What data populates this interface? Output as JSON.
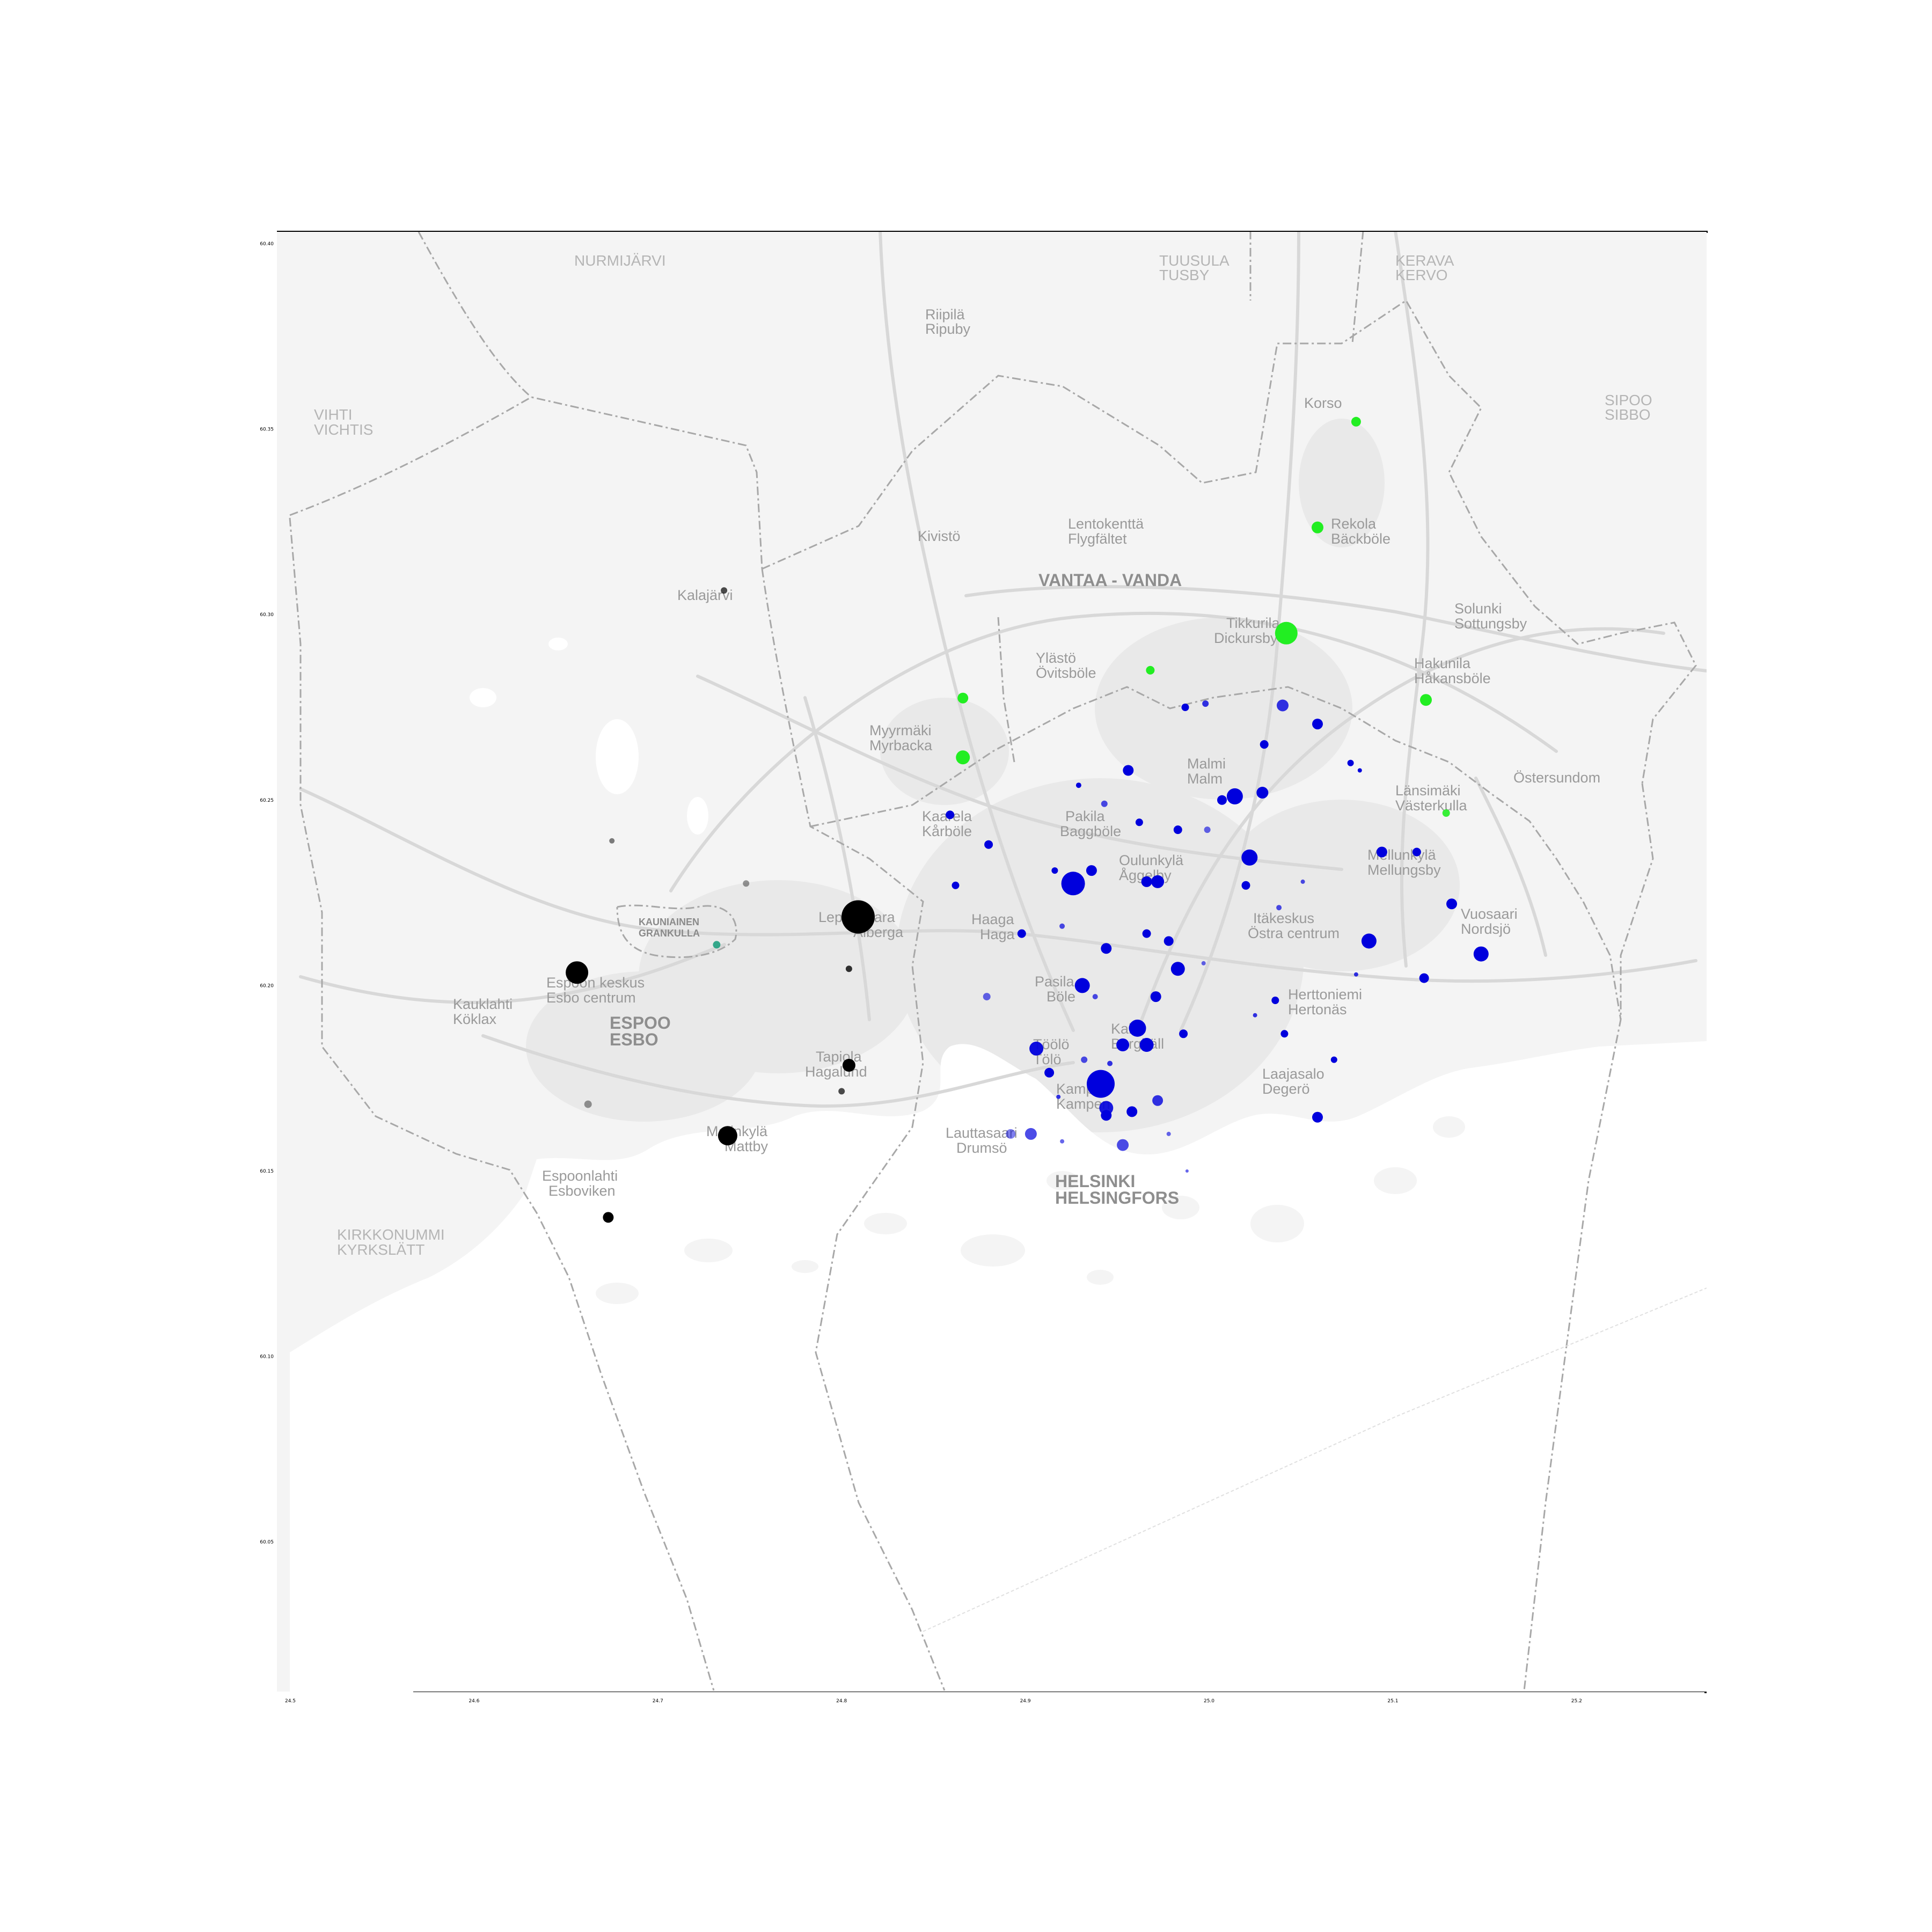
{
  "axes": {
    "x_ticks": [
      "24.5",
      "24.6",
      "24.7",
      "24.8",
      "24.9",
      "25.0",
      "25.1",
      "25.2"
    ],
    "y_ticks": [
      "60.40",
      "60.35",
      "60.30",
      "60.25",
      "60.20",
      "60.15",
      "60.10",
      "60.05"
    ]
  },
  "place_labels": {
    "nurmijarvi": "NURMIJÄRVI",
    "tuusula": "TUUSULA",
    "tusby": "TUSBY",
    "kerava": "KERAVA",
    "kervo": "KERVO",
    "riipila": "Riipilä",
    "ripuby": "Ripuby",
    "korso": "Korso",
    "sipoo": "SIPOO",
    "sibbo": "SIBBO",
    "vihti": "VIHTI",
    "vichtis": "VICHTIS",
    "lentokentta": "Lentokenttä",
    "flygfaltet": "Flygfältet",
    "kivisto": "Kivistö",
    "rekola": "Rekola",
    "backas": "Bäckböle",
    "vantaa": "VANTAA - VANDA",
    "kalajarvi": "Kalajärvi",
    "tikkurila": "Tikkurila",
    "dickursby": "Dickursby",
    "solunki": "Solunki",
    "sottungsby": "Sottungsby",
    "ylasto": "Ylästö",
    "ovitsbole": "Övitsböle",
    "hakunila": "Hakunila",
    "hakansbole": "Håkansböle",
    "myyrmaki": "Myyrmäki",
    "myrbacka": "Myrbacka",
    "malmi": "Malmi",
    "malm": "Malm",
    "ostersundom": "Östersundom",
    "lansimaki": "Länsimäki",
    "vasterkulla": "Västerkulla",
    "kaarela": "Kaarela",
    "karbole": "Kårböle",
    "pakila": "Pakila",
    "baggbole": "Baggböle",
    "oulunkyla": "Oulunkylä",
    "aggelby": "Åggelby",
    "mellunkyla": "Mellunkylä",
    "mellungsby": "Mellungsby",
    "kauniainen": "KAUNIAINEN",
    "grankulla": "GRANKULLA",
    "leppavaara": "Leppävaara",
    "alberga": "Alberga",
    "haaga": "Haaga",
    "haga": "Haga",
    "itakeskus": "Itäkeskus",
    "ostra_centrum": "Östra centrum",
    "vuosaari": "Vuosaari",
    "nordsjo": "Nordsjö",
    "espoon_keskus": "Espoon keskus",
    "esbo_centrum": "Esbo centrum",
    "kauklahti": "Kauklahti",
    "koklax": "Köklax",
    "pasila": "Pasila",
    "bole": "Böle",
    "herttoniemi": "Herttoniemi",
    "hertonas": "Hertonäs",
    "espoo": "ESPOO",
    "esbo": "ESBO",
    "kallio": "Kallio",
    "berghall": "Berghäll",
    "toolo": "Töölö",
    "tolo": "Tölö",
    "tapiola": "Tapiola",
    "hagalund": "Hagalund",
    "laajasalo": "Laajasalo",
    "degero": "Degerö",
    "kamppi": "Kamppi",
    "kampen": "Kampen",
    "matinkyla": "Matinkylä",
    "mattby": "Mattby",
    "lauttasaari": "Lauttasaari",
    "drumso": "Drumsö",
    "helsinki": "HELSINKI",
    "helsingfors": "HELSINGFORS",
    "espoonlahti": "Espoonlahti",
    "esboviken": "Esboviken",
    "kirkkonummi": "KIRKKONUMMI",
    "kyrkslatt": "KYRKSLÄTT"
  },
  "colors": {
    "helsinki": "#0000dd",
    "vantaa": "#22ee22",
    "espoo": "#000000",
    "kauniainen": "#20a080",
    "background": "#f4f4f4",
    "water": "#ffffff",
    "roads": "#d8d8d8",
    "borders": "#a8a8a8"
  },
  "points": [
    {
      "lon": 24.809,
      "lat": 60.2185,
      "r": 31,
      "city": "espoo",
      "a": 1
    },
    {
      "lon": 24.656,
      "lat": 60.2035,
      "r": 21,
      "city": "espoo",
      "a": 1
    },
    {
      "lon": 24.738,
      "lat": 60.1595,
      "r": 18,
      "city": "espoo",
      "a": 1
    },
    {
      "lon": 24.804,
      "lat": 60.1785,
      "r": 12,
      "city": "espoo",
      "a": 1
    },
    {
      "lon": 24.673,
      "lat": 60.1375,
      "r": 10,
      "city": "espoo",
      "a": 1
    },
    {
      "lon": 24.804,
      "lat": 60.2045,
      "r": 6,
      "city": "espoo",
      "a": 0.8
    },
    {
      "lon": 24.8,
      "lat": 60.1715,
      "r": 6,
      "city": "espoo",
      "a": 0.7
    },
    {
      "lon": 24.736,
      "lat": 60.3065,
      "r": 6,
      "city": "espoo",
      "a": 0.7
    },
    {
      "lon": 24.675,
      "lat": 60.239,
      "r": 5,
      "city": "espoo",
      "a": 0.5
    },
    {
      "lon": 24.748,
      "lat": 60.2275,
      "r": 6,
      "city": "espoo",
      "a": 0.4
    },
    {
      "lon": 24.662,
      "lat": 60.168,
      "r": 7,
      "city": "espoo",
      "a": 0.4
    },
    {
      "lon": 24.732,
      "lat": 60.211,
      "r": 7,
      "city": "kauniainen",
      "a": 0.9
    },
    {
      "lon": 25.042,
      "lat": 60.295,
      "r": 21,
      "city": "vantaa",
      "a": 1
    },
    {
      "lon": 24.866,
      "lat": 60.2615,
      "r": 13,
      "city": "vantaa",
      "a": 1
    },
    {
      "lon": 25.059,
      "lat": 60.3235,
      "r": 11,
      "city": "vantaa",
      "a": 1
    },
    {
      "lon": 24.866,
      "lat": 60.2775,
      "r": 10,
      "city": "vantaa",
      "a": 1
    },
    {
      "lon": 25.118,
      "lat": 60.277,
      "r": 11,
      "city": "vantaa",
      "a": 1
    },
    {
      "lon": 25.08,
      "lat": 60.352,
      "r": 9,
      "city": "vantaa",
      "a": 1
    },
    {
      "lon": 24.968,
      "lat": 60.285,
      "r": 8,
      "city": "vantaa",
      "a": 1
    },
    {
      "lon": 25.129,
      "lat": 60.2465,
      "r": 7,
      "city": "vantaa",
      "a": 0.9
    },
    {
      "lon": 24.941,
      "lat": 60.1735,
      "r": 26,
      "city": "helsinki",
      "a": 1
    },
    {
      "lon": 24.926,
      "lat": 60.2275,
      "r": 22,
      "city": "helsinki",
      "a": 1
    },
    {
      "lon": 25.014,
      "lat": 60.251,
      "r": 15,
      "city": "helsinki",
      "a": 1
    },
    {
      "lon": 24.961,
      "lat": 60.1885,
      "r": 16,
      "city": "helsinki",
      "a": 1
    },
    {
      "lon": 25.022,
      "lat": 60.2345,
      "r": 15,
      "city": "helsinki",
      "a": 1
    },
    {
      "lon": 24.931,
      "lat": 60.2,
      "r": 14,
      "city": "helsinki",
      "a": 1
    },
    {
      "lon": 25.087,
      "lat": 60.212,
      "r": 14,
      "city": "helsinki",
      "a": 1
    },
    {
      "lon": 25.148,
      "lat": 60.2085,
      "r": 14,
      "city": "helsinki",
      "a": 1
    },
    {
      "lon": 24.966,
      "lat": 60.184,
      "r": 13,
      "city": "helsinki",
      "a": 1
    },
    {
      "lon": 24.906,
      "lat": 60.183,
      "r": 13,
      "city": "helsinki",
      "a": 0.95
    },
    {
      "lon": 24.953,
      "lat": 60.184,
      "r": 12,
      "city": "helsinki",
      "a": 1
    },
    {
      "lon": 24.944,
      "lat": 60.167,
      "r": 13,
      "city": "helsinki",
      "a": 0.9
    },
    {
      "lon": 24.983,
      "lat": 60.2045,
      "r": 13,
      "city": "helsinki",
      "a": 1
    },
    {
      "lon": 24.972,
      "lat": 60.228,
      "r": 12,
      "city": "helsinki",
      "a": 1
    },
    {
      "lon": 25.029,
      "lat": 60.252,
      "r": 11,
      "city": "helsinki",
      "a": 1
    },
    {
      "lon": 24.956,
      "lat": 60.258,
      "r": 10,
      "city": "helsinki",
      "a": 1
    },
    {
      "lon": 24.936,
      "lat": 60.231,
      "r": 10,
      "city": "helsinki",
      "a": 1
    },
    {
      "lon": 24.944,
      "lat": 60.21,
      "r": 10,
      "city": "helsinki",
      "a": 1
    },
    {
      "lon": 24.966,
      "lat": 60.228,
      "r": 10,
      "city": "helsinki",
      "a": 1
    },
    {
      "lon": 24.944,
      "lat": 60.165,
      "r": 10,
      "city": "helsinki",
      "a": 1
    },
    {
      "lon": 24.971,
      "lat": 60.197,
      "r": 10,
      "city": "helsinki",
      "a": 1
    },
    {
      "lon": 24.913,
      "lat": 60.1765,
      "r": 9,
      "city": "helsinki",
      "a": 1
    },
    {
      "lon": 24.958,
      "lat": 60.166,
      "r": 10,
      "city": "helsinki",
      "a": 1
    },
    {
      "lon": 24.972,
      "lat": 60.169,
      "r": 10,
      "city": "helsinki",
      "a": 0.8
    },
    {
      "lon": 24.978,
      "lat": 60.212,
      "r": 9,
      "city": "helsinki",
      "a": 1
    },
    {
      "lon": 24.903,
      "lat": 60.16,
      "r": 11,
      "city": "helsinki",
      "a": 0.7
    },
    {
      "lon": 24.953,
      "lat": 60.157,
      "r": 11,
      "city": "helsinki",
      "a": 0.7
    },
    {
      "lon": 25.04,
      "lat": 60.2755,
      "r": 11,
      "city": "helsinki",
      "a": 0.8
    },
    {
      "lon": 25.059,
      "lat": 60.2705,
      "r": 10,
      "city": "helsinki",
      "a": 1
    },
    {
      "lon": 25.007,
      "lat": 60.25,
      "r": 9,
      "city": "helsinki",
      "a": 1
    },
    {
      "lon": 25.117,
      "lat": 60.202,
      "r": 9,
      "city": "helsinki",
      "a": 1
    },
    {
      "lon": 25.094,
      "lat": 60.236,
      "r": 10,
      "city": "helsinki",
      "a": 1
    },
    {
      "lon": 25.132,
      "lat": 60.222,
      "r": 10,
      "city": "helsinki",
      "a": 1
    },
    {
      "lon": 25.059,
      "lat": 60.1645,
      "r": 10,
      "city": "helsinki",
      "a": 1
    },
    {
      "lon": 25.03,
      "lat": 60.265,
      "r": 8,
      "city": "helsinki",
      "a": 1
    },
    {
      "lon": 24.983,
      "lat": 60.242,
      "r": 8,
      "city": "helsinki",
      "a": 1
    },
    {
      "lon": 24.966,
      "lat": 60.214,
      "r": 8,
      "city": "helsinki",
      "a": 1
    },
    {
      "lon": 24.986,
      "lat": 60.187,
      "r": 8,
      "city": "helsinki",
      "a": 1
    },
    {
      "lon": 24.88,
      "lat": 60.238,
      "r": 8,
      "city": "helsinki",
      "a": 1
    },
    {
      "lon": 24.898,
      "lat": 60.214,
      "r": 8,
      "city": "helsinki",
      "a": 1
    },
    {
      "lon": 25.02,
      "lat": 60.227,
      "r": 8,
      "city": "helsinki",
      "a": 1
    },
    {
      "lon": 25.113,
      "lat": 60.236,
      "r": 8,
      "city": "helsinki",
      "a": 1
    },
    {
      "lon": 25.036,
      "lat": 60.196,
      "r": 7,
      "city": "helsinki",
      "a": 1
    },
    {
      "lon": 25.041,
      "lat": 60.187,
      "r": 7,
      "city": "helsinki",
      "a": 1
    },
    {
      "lon": 25.068,
      "lat": 60.18,
      "r": 6,
      "city": "helsinki",
      "a": 1
    },
    {
      "lon": 24.879,
      "lat": 60.197,
      "r": 7,
      "city": "helsinki",
      "a": 0.6
    },
    {
      "lon": 24.892,
      "lat": 60.16,
      "r": 9,
      "city": "helsinki",
      "a": 0.5
    },
    {
      "lon": 24.859,
      "lat": 60.246,
      "r": 8,
      "city": "helsinki",
      "a": 1
    },
    {
      "lon": 24.862,
      "lat": 60.227,
      "r": 7,
      "city": "helsinki",
      "a": 1
    },
    {
      "lon": 24.916,
      "lat": 60.231,
      "r": 6,
      "city": "helsinki",
      "a": 1
    },
    {
      "lon": 24.943,
      "lat": 60.249,
      "r": 6,
      "city": "helsinki",
      "a": 0.7
    },
    {
      "lon": 24.987,
      "lat": 60.275,
      "r": 7,
      "city": "helsinki",
      "a": 1
    },
    {
      "lon": 24.998,
      "lat": 60.276,
      "r": 6,
      "city": "helsinki",
      "a": 0.8
    },
    {
      "lon": 24.962,
      "lat": 60.244,
      "r": 7,
      "city": "helsinki",
      "a": 1
    },
    {
      "lon": 24.999,
      "lat": 60.242,
      "r": 6,
      "city": "helsinki",
      "a": 0.6
    },
    {
      "lon": 25.077,
      "lat": 60.26,
      "r": 6,
      "city": "helsinki",
      "a": 1
    },
    {
      "lon": 25.038,
      "lat": 60.221,
      "r": 5,
      "city": "helsinki",
      "a": 0.7
    },
    {
      "lon": 24.929,
      "lat": 60.254,
      "r": 5,
      "city": "helsinki",
      "a": 1
    },
    {
      "lon": 24.92,
      "lat": 60.216,
      "r": 5,
      "city": "helsinki",
      "a": 0.7
    },
    {
      "lon": 24.938,
      "lat": 60.197,
      "r": 5,
      "city": "helsinki",
      "a": 0.7
    },
    {
      "lon": 24.932,
      "lat": 60.18,
      "r": 6,
      "city": "helsinki",
      "a": 0.7
    },
    {
      "lon": 24.978,
      "lat": 60.16,
      "r": 4,
      "city": "helsinki",
      "a": 0.6
    },
    {
      "lon": 25.08,
      "lat": 60.203,
      "r": 4,
      "city": "helsinki",
      "a": 0.8
    },
    {
      "lon": 25.082,
      "lat": 60.258,
      "r": 4,
      "city": "helsinki",
      "a": 1
    },
    {
      "lon": 24.92,
      "lat": 60.158,
      "r": 4,
      "city": "helsinki",
      "a": 0.6
    },
    {
      "lon": 25.051,
      "lat": 60.228,
      "r": 4,
      "city": "helsinki",
      "a": 0.7
    },
    {
      "lon": 24.997,
      "lat": 60.206,
      "r": 4,
      "city": "helsinki",
      "a": 0.6
    },
    {
      "lon": 24.918,
      "lat": 60.17,
      "r": 4,
      "city": "helsinki",
      "a": 0.8
    },
    {
      "lon": 24.946,
      "lat": 60.179,
      "r": 5,
      "city": "helsinki",
      "a": 0.8
    },
    {
      "lon": 25.025,
      "lat": 60.192,
      "r": 4,
      "city": "helsinki",
      "a": 0.8
    },
    {
      "lon": 24.988,
      "lat": 60.15,
      "r": 3,
      "city": "helsinki",
      "a": 0.6
    }
  ]
}
